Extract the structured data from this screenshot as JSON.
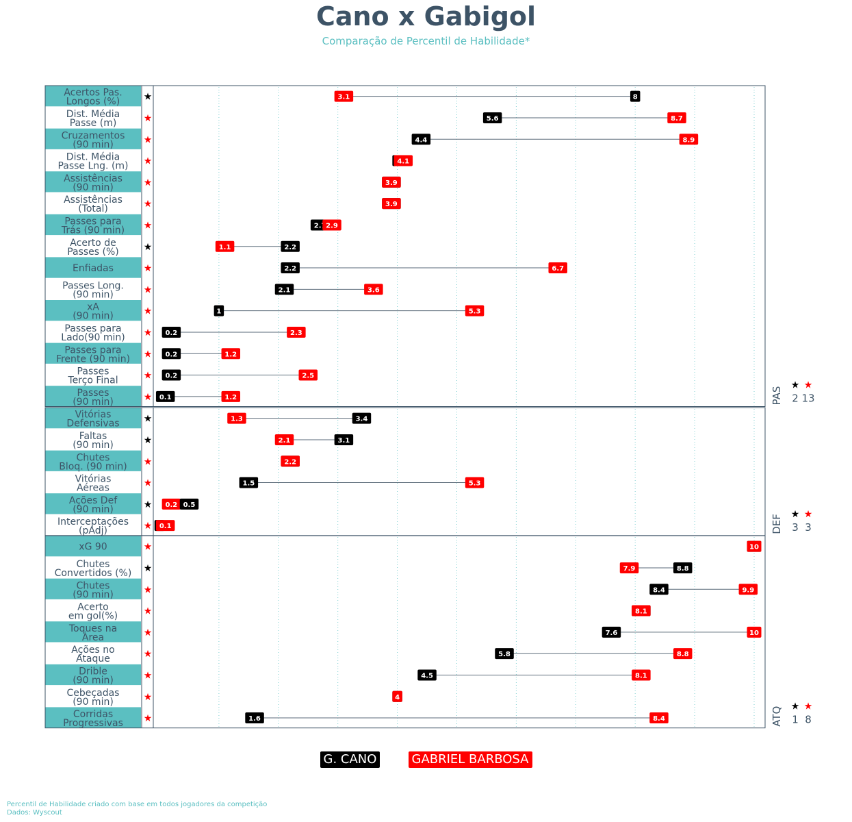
{
  "title": "Cano x Gabigol",
  "subtitle": "Comparação de Percentil de Habilidade*",
  "legend": [
    {
      "name": "G. CANO",
      "color": "#000000"
    },
    {
      "name": "GABRIEL BARBOSA",
      "color": "#ff0000"
    }
  ],
  "footnote": {
    "line1": "Percentil de Habilidade criado com base em todos jogadores da competição",
    "line2": "Dados: Wyscout"
  },
  "colors": {
    "cano": "#000000",
    "gabigol": "#ff0000",
    "band": "#5bbfc1",
    "label_text": "#3d5366"
  },
  "chart_data": {
    "type": "dumbbell",
    "xlim": [
      0,
      10
    ],
    "grid": "vertical dotted",
    "series": [
      {
        "name": "G. CANO",
        "color": "#000000"
      },
      {
        "name": "GABRIEL BARBOSA",
        "color": "#ff0000"
      }
    ],
    "panels": [
      {
        "name": "PAS",
        "count_cano": "2",
        "count_gabigol": "13",
        "rows": [
          {
            "l1": "Acertos Pas.",
            "l2": "Longos (%)",
            "cano": 8,
            "gabigol": 3.1,
            "winner": "cano"
          },
          {
            "l1": "Dist. Média",
            "l2": "Passe (m)",
            "cano": 5.6,
            "gabigol": 8.7,
            "winner": "gabigol"
          },
          {
            "l1": "Cruzamentos",
            "l2": "(90 min)",
            "cano": 4.4,
            "gabigol": 8.9,
            "winner": "gabigol"
          },
          {
            "l1": "Dist. Média",
            "l2": "Passe Lng. (m)",
            "cano": 4.0,
            "gabigol": 4.1,
            "winner": "gabigol"
          },
          {
            "l1": "Assistências",
            "l2": "(90 min)",
            "cano": 3.9,
            "gabigol": 3.9,
            "winner": "gabigol"
          },
          {
            "l1": "Assistências",
            "l2": "(Total)",
            "cano": 3.9,
            "gabigol": 3.9,
            "winner": "gabigol"
          },
          {
            "l1": "Passes para",
            "l2": "Trás (90 min)",
            "cano": 2.7,
            "gabigol": 2.9,
            "winner": "gabigol"
          },
          {
            "l1": "Acerto de",
            "l2": "Passes (%)",
            "cano": 2.2,
            "gabigol": 1.1,
            "winner": "cano"
          },
          {
            "l1": "Enfiadas",
            "l2": "",
            "cano": 2.2,
            "gabigol": 6.7,
            "winner": "gabigol"
          },
          {
            "l1": "Passes Long.",
            "l2": "(90 min)",
            "cano": 2.1,
            "gabigol": 3.6,
            "winner": "gabigol"
          },
          {
            "l1": "xA",
            "l2": "(90 min)",
            "cano": 1,
            "gabigol": 5.3,
            "winner": "gabigol"
          },
          {
            "l1": "Passes para",
            "l2": "Lado(90 min)",
            "cano": 0.2,
            "gabigol": 2.3,
            "winner": "gabigol"
          },
          {
            "l1": "Passes para",
            "l2": "Frente (90 min)",
            "cano": 0.2,
            "gabigol": 1.2,
            "winner": "gabigol"
          },
          {
            "l1": "Passes",
            "l2": "Terço Final",
            "cano": 0.2,
            "gabigol": 2.5,
            "winner": "gabigol"
          },
          {
            "l1": "Passes",
            "l2": "(90 min)",
            "cano": 0.1,
            "gabigol": 1.2,
            "winner": "gabigol"
          }
        ]
      },
      {
        "name": "DEF",
        "count_cano": "3",
        "count_gabigol": "3",
        "rows": [
          {
            "l1": "Vitórias",
            "l2": "Defensivas",
            "cano": 3.4,
            "gabigol": 1.3,
            "winner": "cano"
          },
          {
            "l1": "Faltas",
            "l2": "(90 min)",
            "cano": 3.1,
            "gabigol": 2.1,
            "winner": "cano"
          },
          {
            "l1": "Chutes",
            "l2": "Bloq. (90 min)",
            "cano": 2.2,
            "gabigol": 2.2,
            "winner": "gabigol"
          },
          {
            "l1": "Vitórias",
            "l2": "Aéreas",
            "cano": 1.5,
            "gabigol": 5.3,
            "winner": "gabigol"
          },
          {
            "l1": "Ações Def",
            "l2": "(90 min)",
            "cano": 0.5,
            "gabigol": 0.2,
            "winner": "cano"
          },
          {
            "l1": "Interceptações",
            "l2": "(pAdj)",
            "cano": 0.0,
            "gabigol": 0.1,
            "winner": "gabigol"
          }
        ]
      },
      {
        "name": "ATQ",
        "count_cano": "1",
        "count_gabigol": "8",
        "rows": [
          {
            "l1": "xG 90",
            "l2": "",
            "cano": 10,
            "gabigol": 10,
            "winner": "gabigol"
          },
          {
            "l1": "Chutes",
            "l2": "Convertidos (%)",
            "cano": 8.8,
            "gabigol": 7.9,
            "winner": "cano"
          },
          {
            "l1": "Chutes",
            "l2": "(90 min)",
            "cano": 8.4,
            "gabigol": 9.9,
            "winner": "gabigol"
          },
          {
            "l1": "Acerto",
            "l2": "em gol(%)",
            "cano": 8.1,
            "gabigol": 8.1,
            "winner": "gabigol"
          },
          {
            "l1": "Toques na",
            "l2": "Área",
            "cano": 7.6,
            "gabigol": 10,
            "winner": "gabigol"
          },
          {
            "l1": "Ações no",
            "l2": "Ataque",
            "cano": 5.8,
            "gabigol": 8.8,
            "winner": "gabigol"
          },
          {
            "l1": "Drible",
            "l2": "(90 min)",
            "cano": 4.5,
            "gabigol": 8.1,
            "winner": "gabigol"
          },
          {
            "l1": "Cebeçadas",
            "l2": "(90 min)",
            "cano": 4,
            "gabigol": 4,
            "winner": "gabigol"
          },
          {
            "l1": "Corridas",
            "l2": "Progressivas",
            "cano": 1.6,
            "gabigol": 8.4,
            "winner": "gabigol"
          }
        ]
      }
    ]
  }
}
